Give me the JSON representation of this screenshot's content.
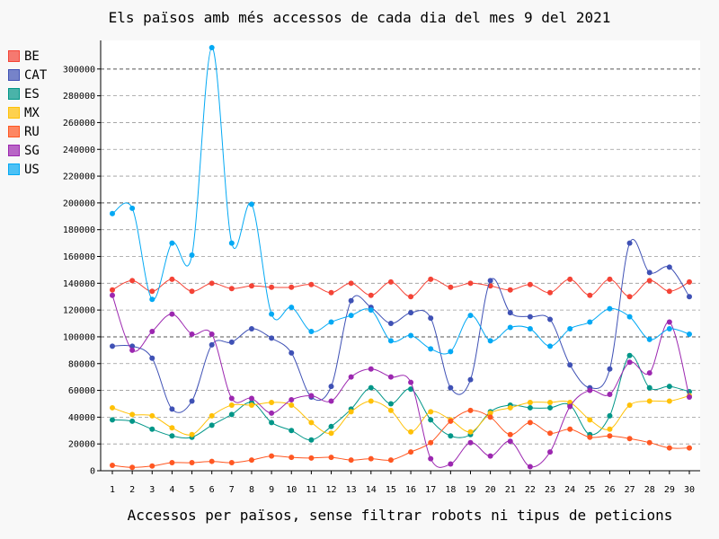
{
  "chart_data": {
    "type": "line",
    "title": "Els països amb més accessos de cada dia del mes 9 del 2021",
    "xlabel": "Accessos per països, sense filtrar robots ni tipus de peticions",
    "ylabel": "",
    "x": [
      1,
      2,
      3,
      4,
      5,
      6,
      7,
      8,
      9,
      10,
      11,
      12,
      13,
      14,
      15,
      16,
      17,
      18,
      19,
      20,
      21,
      22,
      23,
      24,
      25,
      26,
      27,
      28,
      29,
      30
    ],
    "ylim": [
      0,
      320000
    ],
    "yticks": [
      0,
      20000,
      40000,
      60000,
      80000,
      100000,
      120000,
      140000,
      160000,
      180000,
      200000,
      220000,
      240000,
      260000,
      280000,
      300000
    ],
    "grid": "horizontal dashed",
    "legend_position": "left",
    "series": [
      {
        "name": "BE",
        "color": "#f44336",
        "values": [
          135000,
          142000,
          134000,
          143000,
          134000,
          140000,
          136000,
          138000,
          137000,
          137000,
          139000,
          133000,
          140000,
          131000,
          141000,
          130000,
          143000,
          137000,
          140000,
          138000,
          135000,
          139000,
          133000,
          143000,
          131000,
          143000,
          130000,
          142000,
          134000,
          141000
        ]
      },
      {
        "name": "CAT",
        "color": "#3f51b5",
        "values": [
          93000,
          93000,
          84000,
          46000,
          52000,
          94000,
          96000,
          106000,
          99000,
          88000,
          55000,
          63000,
          127000,
          122000,
          110000,
          118000,
          114000,
          62000,
          68000,
          142000,
          118000,
          115000,
          113000,
          79000,
          62000,
          76000,
          170000,
          148000,
          152000,
          130000
        ]
      },
      {
        "name": "ES",
        "color": "#009688",
        "values": [
          38000,
          37000,
          31000,
          26000,
          25000,
          34000,
          42000,
          51000,
          36000,
          30000,
          23000,
          33000,
          46000,
          62000,
          50000,
          61000,
          38000,
          26000,
          27000,
          44000,
          49000,
          47000,
          47000,
          49000,
          27000,
          41000,
          86000,
          62000,
          63000,
          59000
        ]
      },
      {
        "name": "MX",
        "color": "#ffc107",
        "values": [
          47000,
          42000,
          41000,
          32000,
          27000,
          41000,
          49000,
          49000,
          51000,
          49000,
          36000,
          28000,
          44000,
          52000,
          45000,
          29000,
          44000,
          38000,
          29000,
          43000,
          47000,
          51000,
          51000,
          51000,
          38000,
          31000,
          49000,
          52000,
          52000,
          56000
        ]
      },
      {
        "name": "RU",
        "color": "#ff5722",
        "values": [
          4000,
          2500,
          3500,
          6000,
          6000,
          7000,
          6000,
          8000,
          11000,
          10000,
          9500,
          10000,
          8000,
          9000,
          8000,
          14000,
          21000,
          37000,
          45000,
          40000,
          27000,
          36000,
          28000,
          31000,
          25000,
          26000,
          24000,
          21000,
          17000,
          17000
        ]
      },
      {
        "name": "SG",
        "color": "#9c27b0",
        "values": [
          131000,
          90000,
          104000,
          117000,
          102000,
          102000,
          54000,
          54000,
          43000,
          53000,
          56000,
          52000,
          70000,
          76000,
          70000,
          66000,
          9000,
          5000,
          21000,
          11000,
          22000,
          3000,
          14000,
          48000,
          60000,
          57000,
          81000,
          73000,
          111000,
          55000
        ]
      },
      {
        "name": "US",
        "color": "#03a9f4",
        "values": [
          192000,
          196000,
          128000,
          170000,
          161000,
          316000,
          170000,
          199000,
          117000,
          122000,
          104000,
          111000,
          116000,
          120000,
          97000,
          101000,
          91000,
          89000,
          116000,
          97000,
          107000,
          106000,
          93000,
          106000,
          111000,
          121000,
          115000,
          98000,
          106000,
          102000
        ]
      }
    ]
  }
}
